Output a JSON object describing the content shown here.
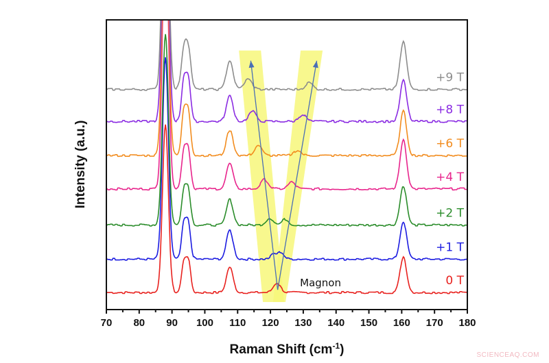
{
  "chart_data": {
    "type": "line",
    "title": "",
    "xlabel": "Raman Shift (cm",
    "xlabel_sup": "-1",
    "xlabel_end": ")",
    "ylabel": "Intensity (a.u.)",
    "xlim": [
      70,
      180
    ],
    "ylim": [
      -0.5,
      8.0
    ],
    "x_ticks": [
      70,
      80,
      90,
      100,
      110,
      120,
      130,
      140,
      150,
      160,
      170,
      180
    ],
    "x_minor_step": 5,
    "y_ticks_shown": false,
    "grid": false,
    "legend": "inline labels at right end of each trace",
    "series": [
      {
        "name": "0 T",
        "color": "#e8211e",
        "offset": 0.0,
        "peaks": [
          [
            88.0,
            4.9,
            0.9
          ],
          [
            93.6,
            0.85,
            0.7
          ],
          [
            95.0,
            0.9,
            0.7
          ],
          [
            107.6,
            0.75,
            1.0
          ],
          [
            122.0,
            0.28,
            1.1
          ],
          [
            160.5,
            1.05,
            1.0
          ]
        ]
      },
      {
        "name": "+1 T",
        "color": "#1b1be0",
        "offset": 0.98,
        "peaks": [
          [
            88.0,
            5.9,
            0.9
          ],
          [
            93.6,
            1.0,
            0.7
          ],
          [
            95.0,
            1.0,
            0.7
          ],
          [
            107.6,
            0.85,
            1.0
          ],
          [
            121.0,
            0.15,
            0.9
          ],
          [
            123.2,
            0.2,
            0.9
          ],
          [
            160.5,
            1.1,
            1.0
          ]
        ]
      },
      {
        "name": "+2 T",
        "color": "#2a8c2a",
        "offset": 1.98,
        "peaks": [
          [
            88.0,
            5.6,
            0.9
          ],
          [
            93.6,
            1.0,
            0.7
          ],
          [
            95.0,
            1.0,
            0.7
          ],
          [
            107.6,
            0.75,
            1.0
          ],
          [
            119.8,
            0.2,
            1.1
          ],
          [
            124.5,
            0.17,
            1.0
          ],
          [
            160.5,
            1.15,
            1.0
          ]
        ]
      },
      {
        "name": "+4 T",
        "color": "#e8248c",
        "offset": 3.04,
        "peaks": [
          [
            88.0,
            8.0,
            0.9
          ],
          [
            93.6,
            1.1,
            0.7
          ],
          [
            95.0,
            1.1,
            0.7
          ],
          [
            107.6,
            0.75,
            1.0
          ],
          [
            118.2,
            0.28,
            1.1
          ],
          [
            126.5,
            0.2,
            1.1
          ],
          [
            160.5,
            1.45,
            1.0
          ]
        ]
      },
      {
        "name": "+6 T",
        "color": "#f28c1e",
        "offset": 4.02,
        "peaks": [
          [
            88.0,
            8.0,
            0.9
          ],
          [
            93.6,
            1.25,
            0.7
          ],
          [
            95.0,
            1.25,
            0.7
          ],
          [
            107.6,
            0.75,
            1.0
          ],
          [
            116.3,
            0.3,
            1.1
          ],
          [
            128.2,
            0.15,
            1.1
          ],
          [
            160.5,
            1.3,
            1.0
          ]
        ]
      },
      {
        "name": "+8 T",
        "color": "#8a2be2",
        "offset": 5.02,
        "peaks": [
          [
            88.0,
            8.0,
            0.9
          ],
          [
            93.6,
            1.2,
            0.7
          ],
          [
            95.0,
            1.2,
            0.7
          ],
          [
            107.6,
            0.75,
            1.0
          ],
          [
            114.5,
            0.3,
            1.1
          ],
          [
            129.8,
            0.2,
            1.1
          ],
          [
            160.5,
            1.2,
            1.0
          ]
        ]
      },
      {
        "name": "+9 T",
        "color": "#8c8c8c",
        "offset": 5.96,
        "peaks": [
          [
            88.0,
            8.0,
            0.9
          ],
          [
            93.6,
            1.1,
            0.8
          ],
          [
            95.0,
            1.1,
            0.8
          ],
          [
            107.6,
            0.85,
            1.0
          ],
          [
            113.2,
            0.3,
            1.2
          ],
          [
            131.8,
            0.2,
            1.1
          ],
          [
            160.5,
            1.4,
            1.0
          ]
        ]
      }
    ],
    "annotations": {
      "magnon_label": {
        "text": "Magnon",
        "x": 129.0,
        "y": 0.3
      },
      "highlight_color": "#f7f77a",
      "arrow_color": "#4a6fb5",
      "highlight_bands": [
        [
          [
            110.4,
            7.1
          ],
          [
            117.1,
            7.1
          ],
          [
            124.2,
            -0.28
          ],
          [
            117.7,
            -0.28
          ]
        ],
        [
          [
            129.2,
            7.1
          ],
          [
            135.9,
            7.1
          ],
          [
            124.6,
            -0.28
          ],
          [
            120.8,
            -0.28
          ]
        ]
      ],
      "arrows": [
        {
          "from": [
            122.2,
            0.08
          ],
          "to": [
            114.0,
            6.8
          ]
        },
        {
          "from": [
            122.2,
            0.08
          ],
          "to": [
            134.1,
            6.8
          ]
        }
      ]
    }
  },
  "watermark": "SCIENCEAQ.COM"
}
